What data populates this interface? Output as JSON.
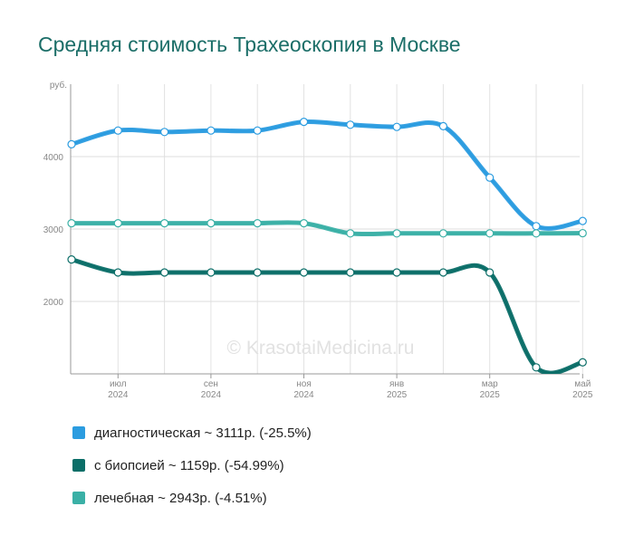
{
  "title": "Средняя стоимость Трахеоскопия в Москве",
  "watermark": "© KrasotaiMedicina.ru",
  "chart_data": {
    "type": "line",
    "y_unit_label": "руб.",
    "y_ticks": [
      2000,
      3000,
      4000
    ],
    "ylim": [
      1000,
      5000
    ],
    "x_ticks": [
      {
        "index": 1,
        "month": "июл",
        "year": "2024"
      },
      {
        "index": 3,
        "month": "сен",
        "year": "2024"
      },
      {
        "index": 5,
        "month": "ноя",
        "year": "2024"
      },
      {
        "index": 7,
        "month": "янв",
        "year": "2025"
      },
      {
        "index": 9,
        "month": "мар",
        "year": "2025"
      },
      {
        "index": 11,
        "month": "май",
        "year": "2025"
      }
    ],
    "x": [
      "2024-06",
      "2024-07",
      "2024-08",
      "2024-09",
      "2024-10",
      "2024-11",
      "2024-12",
      "2025-01",
      "2025-02",
      "2025-03",
      "2025-04",
      "2025-05"
    ],
    "grid": true,
    "legend_position": "bottom-left",
    "series": [
      {
        "name": "диагностическая",
        "legend": "диагностическая ~ 3111р. (-25.5%)",
        "color": "#2b9ce0",
        "values": [
          4170,
          4360,
          4340,
          4360,
          4360,
          4480,
          4440,
          4410,
          4420,
          3710,
          3040,
          3111
        ]
      },
      {
        "name": "с биопсией",
        "legend": "с биопсией ~ 1159р. (-54.99%)",
        "color": "#0b6e68",
        "values": [
          2580,
          2400,
          2400,
          2400,
          2400,
          2400,
          2400,
          2400,
          2400,
          2400,
          1090,
          1159
        ]
      },
      {
        "name": "лечебная",
        "legend": "лечебная ~ 2943р. (-4.51%)",
        "color": "#3ab0a6",
        "values": [
          3080,
          3080,
          3080,
          3080,
          3080,
          3080,
          2940,
          2940,
          2940,
          2940,
          2940,
          2943
        ]
      }
    ]
  }
}
